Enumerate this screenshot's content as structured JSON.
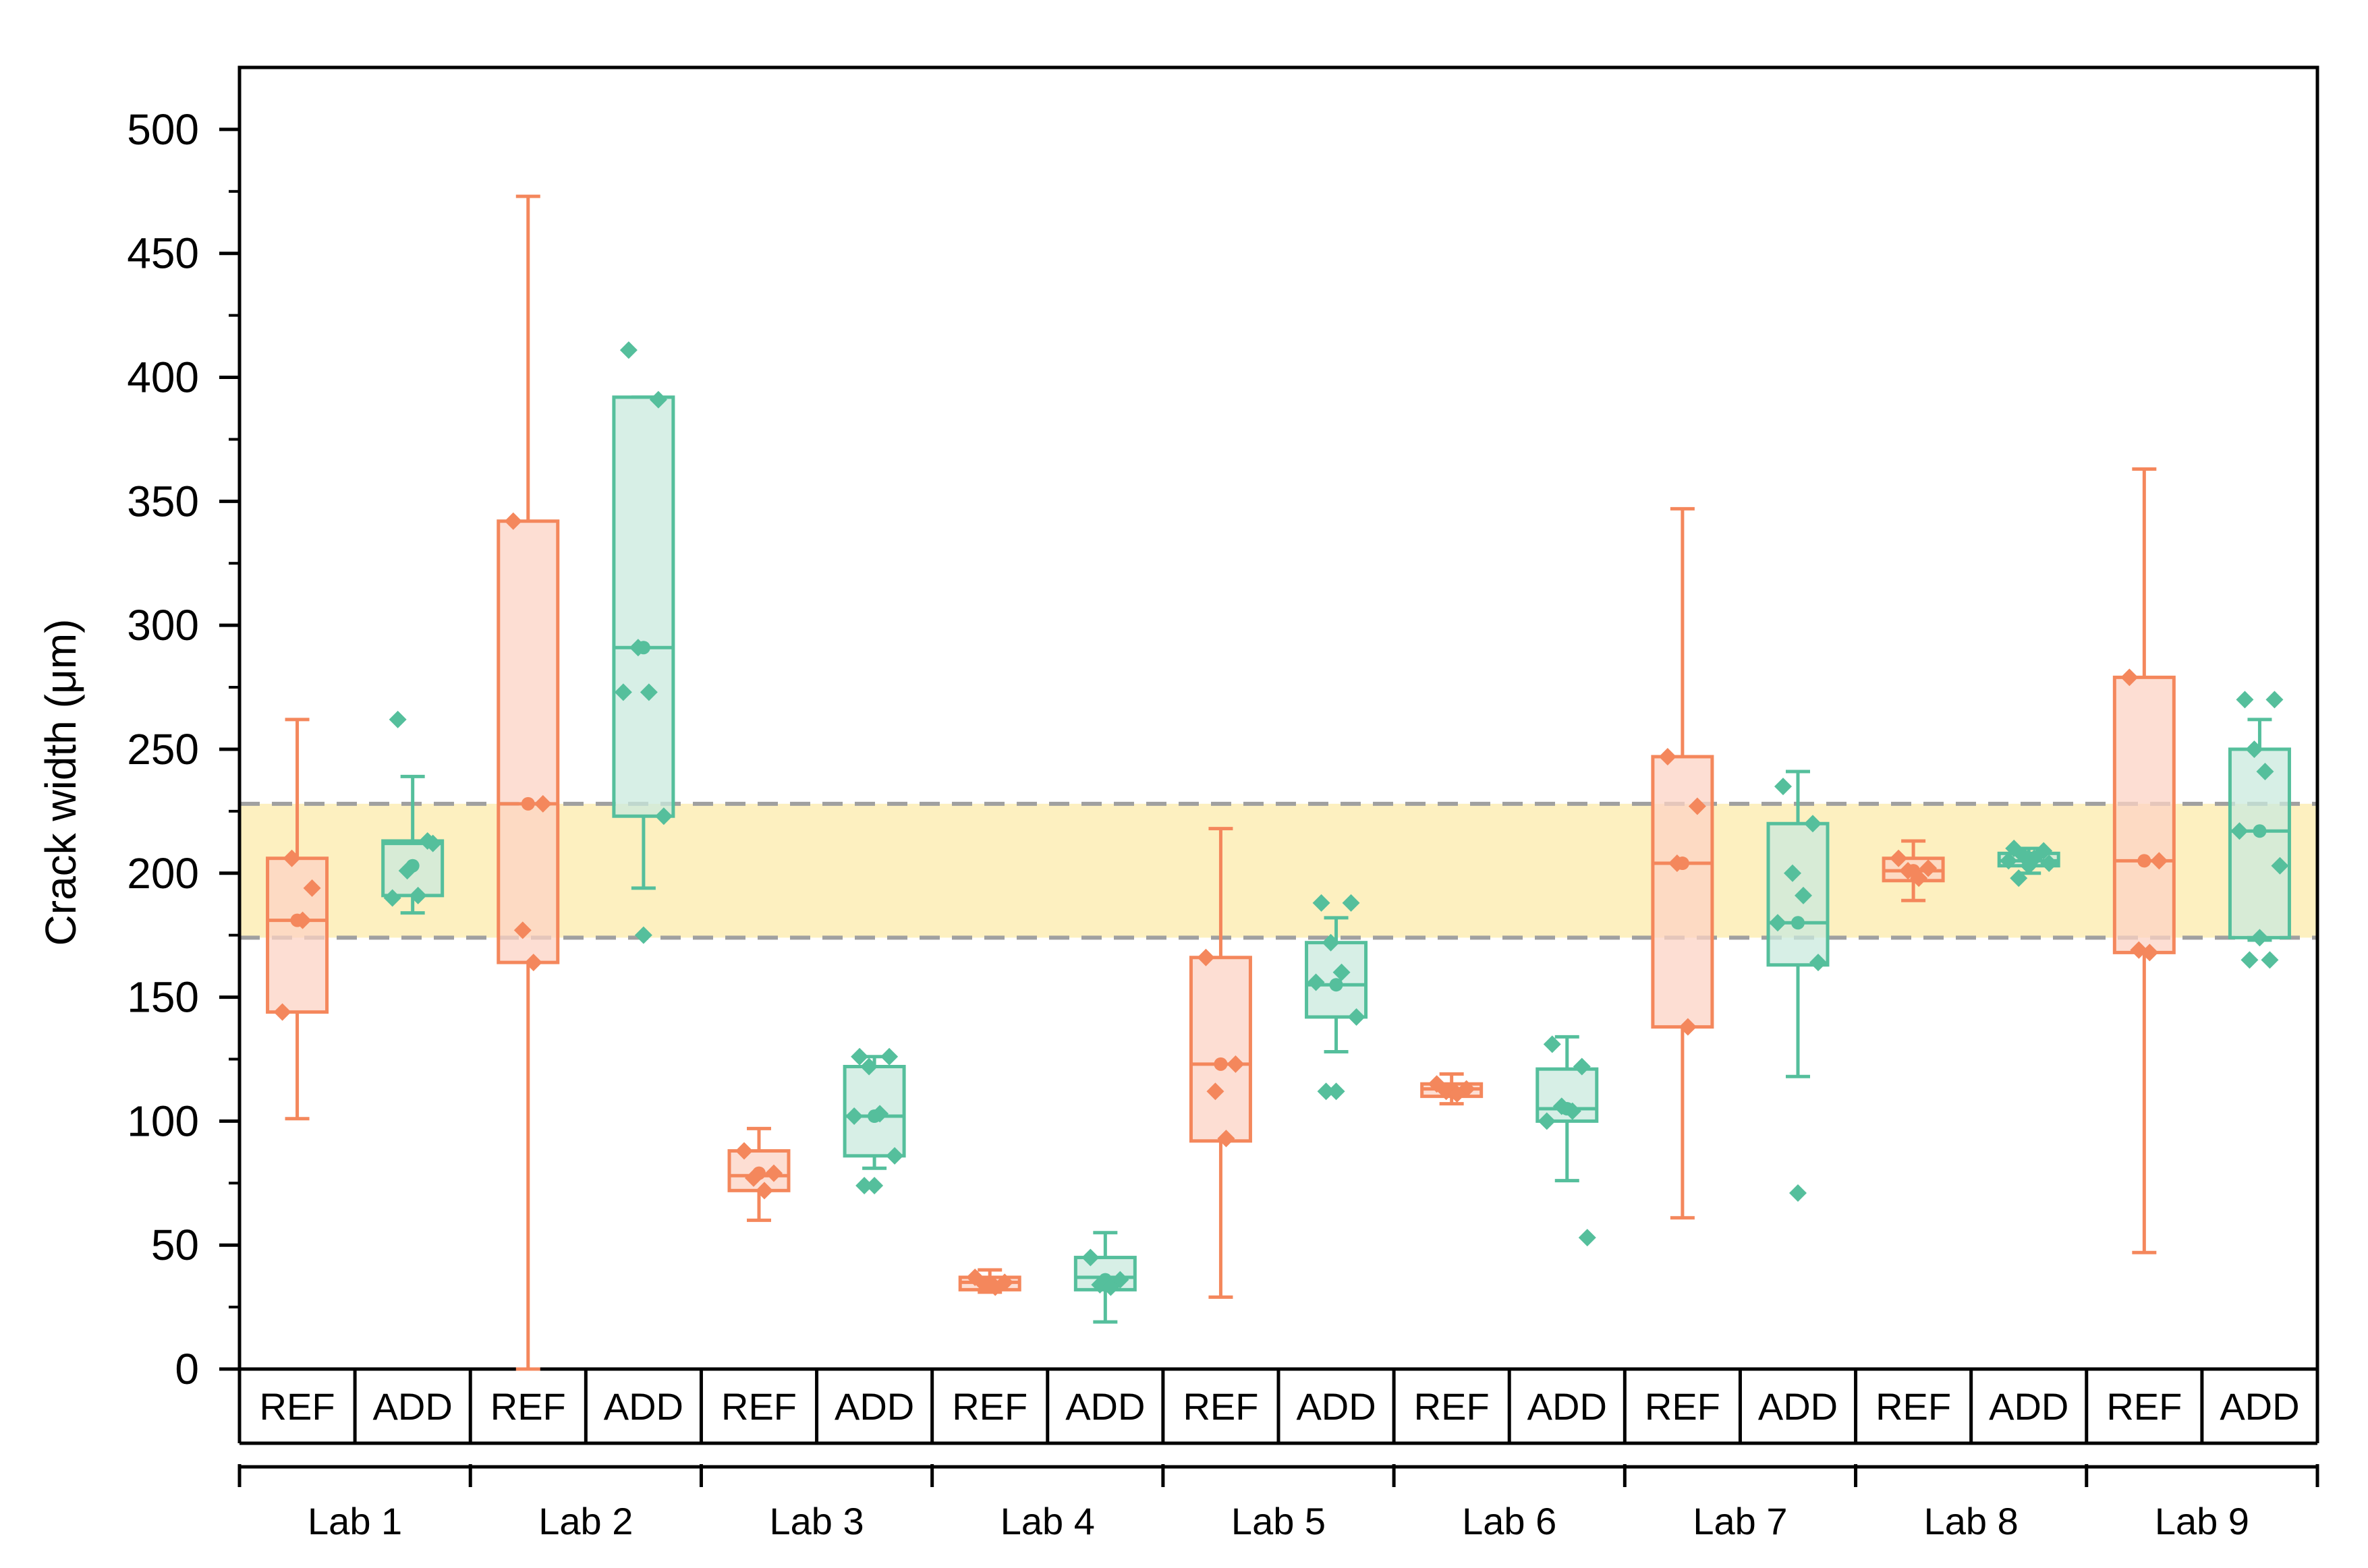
{
  "chart_data": {
    "type": "box",
    "title": "",
    "ylabel": "Crack width (μm)",
    "xlabel": "",
    "ylim": [
      0,
      525
    ],
    "y_ticks": [
      0,
      50,
      100,
      150,
      200,
      250,
      300,
      350,
      400,
      450,
      500
    ],
    "groups": [
      "Lab 1",
      "Lab 2",
      "Lab 3",
      "Lab 4",
      "Lab 5",
      "Lab 6",
      "Lab 7",
      "Lab 8",
      "Lab 9"
    ],
    "conditions": [
      "REF",
      "ADD"
    ],
    "reference_band": {
      "low": 174,
      "high": 228,
      "color": "#fdf0c0"
    },
    "colors": {
      "REF": "#f4875c",
      "ADD": "#55bf9c",
      "REF_fill": "#fcd3c4",
      "ADD_fill": "#c9eadd",
      "band_line": "#a0a0a0"
    },
    "series": [
      {
        "group": "Lab 1",
        "condition": "REF",
        "whisker_low": 101,
        "q1": 144,
        "median": 181,
        "q3": 206,
        "whisker_high": 262,
        "mean": 181,
        "points": [
          144,
          194,
          206,
          181
        ]
      },
      {
        "group": "Lab 1",
        "condition": "ADD",
        "whisker_low": 184,
        "q1": 191,
        "median": 212,
        "q3": 213,
        "whisker_high": 239,
        "mean": 203,
        "points": [
          262,
          213,
          201,
          191,
          190,
          212
        ]
      },
      {
        "group": "Lab 2",
        "condition": "REF",
        "whisker_low": 0,
        "q1": 164,
        "median": 228,
        "q3": 342,
        "whisker_high": 473,
        "mean": 228,
        "points": [
          342,
          228,
          177,
          164
        ]
      },
      {
        "group": "Lab 2",
        "condition": "ADD",
        "whisker_low": 194,
        "q1": 223,
        "median": 291,
        "q3": 392,
        "whisker_high": 392,
        "mean": 291,
        "points": [
          411,
          391,
          291,
          273,
          273,
          223,
          175
        ]
      },
      {
        "group": "Lab 3",
        "condition": "REF",
        "whisker_low": 60,
        "q1": 72,
        "median": 78,
        "q3": 88,
        "whisker_high": 97,
        "mean": 79,
        "points": [
          88,
          79,
          77,
          72
        ]
      },
      {
        "group": "Lab 3",
        "condition": "ADD",
        "whisker_low": 81,
        "q1": 86,
        "median": 102,
        "q3": 122,
        "whisker_high": 126,
        "mean": 102,
        "points": [
          126,
          126,
          122,
          103,
          102,
          86,
          74,
          74
        ]
      },
      {
        "group": "Lab 4",
        "condition": "REF",
        "whisker_low": 31,
        "q1": 32,
        "median": 35,
        "q3": 37,
        "whisker_high": 40,
        "mean": 35,
        "points": [
          37,
          35,
          34,
          33
        ]
      },
      {
        "group": "Lab 4",
        "condition": "ADD",
        "whisker_low": 19,
        "q1": 32,
        "median": 37,
        "q3": 45,
        "whisker_high": 55,
        "mean": 36,
        "points": [
          45,
          36,
          34,
          33
        ]
      },
      {
        "group": "Lab 5",
        "condition": "REF",
        "whisker_low": 29,
        "q1": 92,
        "median": 123,
        "q3": 166,
        "whisker_high": 218,
        "mean": 123,
        "points": [
          166,
          123,
          112,
          93
        ]
      },
      {
        "group": "Lab 5",
        "condition": "ADD",
        "whisker_low": 128,
        "q1": 142,
        "median": 155,
        "q3": 172,
        "whisker_high": 182,
        "mean": 155,
        "points": [
          188,
          188,
          172,
          160,
          156,
          142,
          112,
          112
        ]
      },
      {
        "group": "Lab 6",
        "condition": "REF",
        "whisker_low": 107,
        "q1": 110,
        "median": 113,
        "q3": 115,
        "whisker_high": 119,
        "mean": 113,
        "points": [
          115,
          113,
          112,
          111
        ]
      },
      {
        "group": "Lab 6",
        "condition": "ADD",
        "whisker_low": 76,
        "q1": 100,
        "median": 105,
        "q3": 121,
        "whisker_high": 134,
        "mean": 105,
        "points": [
          131,
          122,
          106,
          104,
          100,
          53
        ]
      },
      {
        "group": "Lab 7",
        "condition": "REF",
        "whisker_low": 61,
        "q1": 138,
        "median": 204,
        "q3": 247,
        "whisker_high": 347,
        "mean": 204,
        "points": [
          247,
          227,
          204,
          138
        ]
      },
      {
        "group": "Lab 7",
        "condition": "ADD",
        "whisker_low": 118,
        "q1": 163,
        "median": 180,
        "q3": 220,
        "whisker_high": 241,
        "mean": 180,
        "points": [
          235,
          220,
          200,
          191,
          180,
          164,
          71
        ]
      },
      {
        "group": "Lab 8",
        "condition": "REF",
        "whisker_low": 189,
        "q1": 197,
        "median": 201,
        "q3": 206,
        "whisker_high": 213,
        "mean": 201,
        "points": [
          206,
          202,
          201,
          198
        ]
      },
      {
        "group": "Lab 8",
        "condition": "ADD",
        "whisker_low": 200,
        "q1": 203,
        "median": 205,
        "q3": 208,
        "whisker_high": 210,
        "mean": 205,
        "points": [
          210,
          209,
          207,
          206,
          205,
          204,
          203,
          198
        ]
      },
      {
        "group": "Lab 9",
        "condition": "REF",
        "whisker_low": 47,
        "q1": 168,
        "median": 205,
        "q3": 279,
        "whisker_high": 363,
        "mean": 205,
        "points": [
          279,
          205,
          169,
          168
        ]
      },
      {
        "group": "Lab 9",
        "condition": "ADD",
        "whisker_low": 173,
        "q1": 174,
        "median": 217,
        "q3": 250,
        "whisker_high": 262,
        "mean": 217,
        "points": [
          270,
          270,
          250,
          241,
          217,
          203,
          174,
          165,
          165
        ]
      }
    ]
  }
}
